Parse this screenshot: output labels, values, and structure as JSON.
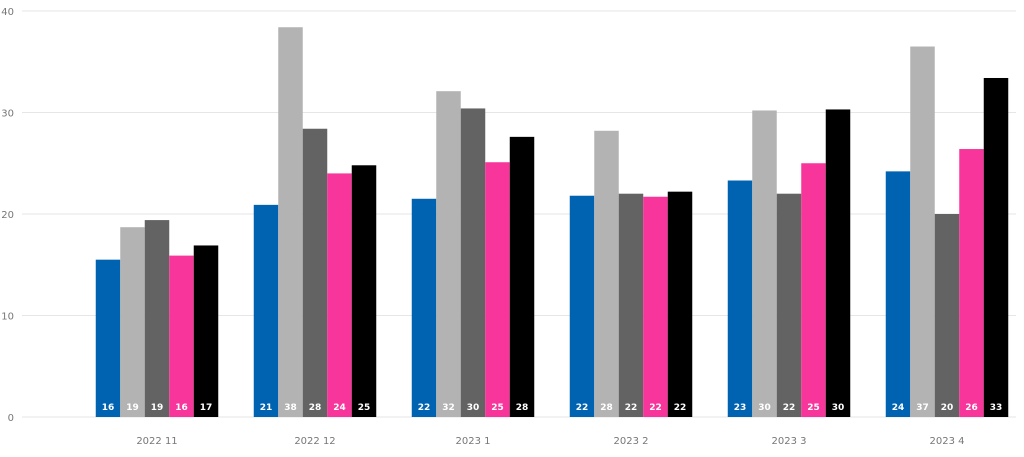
{
  "chart_data": {
    "type": "bar",
    "categories": [
      "2022 11",
      "2022 12",
      "2023 1",
      "2023 2",
      "2023 3",
      "2023 4"
    ],
    "series": [
      {
        "color": "#0063b1",
        "values": [
          15.5,
          20.9,
          21.5,
          21.8,
          23.3,
          24.2
        ],
        "labels": [
          "16",
          "21",
          "22",
          "22",
          "23",
          "24"
        ]
      },
      {
        "color": "#b3b3b3",
        "values": [
          18.7,
          38.4,
          32.1,
          28.2,
          30.2,
          36.5
        ],
        "labels": [
          "19",
          "38",
          "32",
          "28",
          "30",
          "37"
        ]
      },
      {
        "color": "#636363",
        "values": [
          19.4,
          28.4,
          30.4,
          22.0,
          22.0,
          20.0
        ],
        "labels": [
          "19",
          "28",
          "30",
          "22",
          "22",
          "20"
        ]
      },
      {
        "color": "#f7359a",
        "values": [
          15.9,
          24.0,
          25.1,
          21.7,
          25.0,
          26.4
        ],
        "labels": [
          "16",
          "24",
          "25",
          "22",
          "25",
          "26"
        ]
      },
      {
        "color": "#000000",
        "values": [
          16.9,
          24.8,
          27.6,
          22.2,
          30.3,
          33.4
        ],
        "labels": [
          "17",
          "25",
          "28",
          "22",
          "30",
          "33"
        ]
      }
    ],
    "yticks": [
      "0",
      "10",
      "20",
      "30",
      "40"
    ],
    "ylim": [
      0,
      40
    ],
    "grid": true,
    "legend": "none"
  }
}
